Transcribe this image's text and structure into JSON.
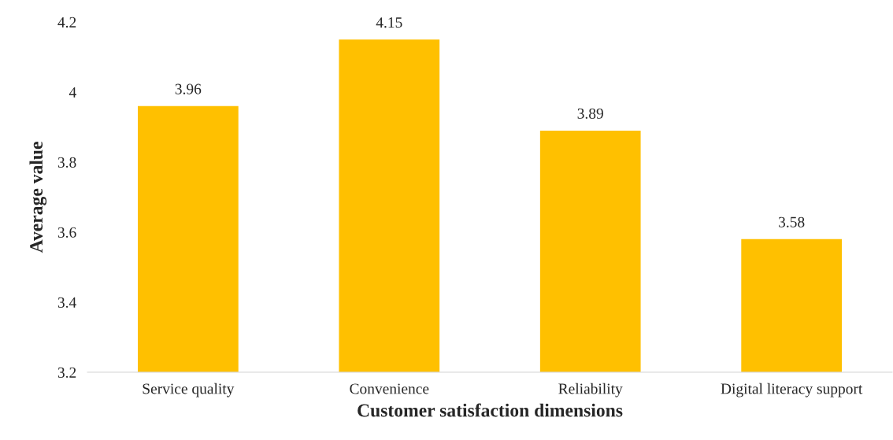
{
  "chart_data": {
    "type": "bar",
    "categories": [
      "Service quality",
      "Convenience",
      "Reliability",
      "Digital literacy support"
    ],
    "values": [
      3.96,
      4.15,
      3.89,
      3.58
    ],
    "color": "#ffc000",
    "xlabel": "Customer satisfaction dimensions",
    "ylabel": "Average value",
    "ylim": [
      3.2,
      4.2
    ],
    "yticks": [
      {
        "value": 3.2,
        "label": "3.2"
      },
      {
        "value": 3.4,
        "label": "3.4"
      },
      {
        "value": 3.6,
        "label": "3.6"
      },
      {
        "value": 3.8,
        "label": "3.8"
      },
      {
        "value": 4.0,
        "label": "4"
      },
      {
        "value": 4.2,
        "label": "4.2"
      }
    ],
    "data_labels": true,
    "grid": false,
    "legend": false
  }
}
